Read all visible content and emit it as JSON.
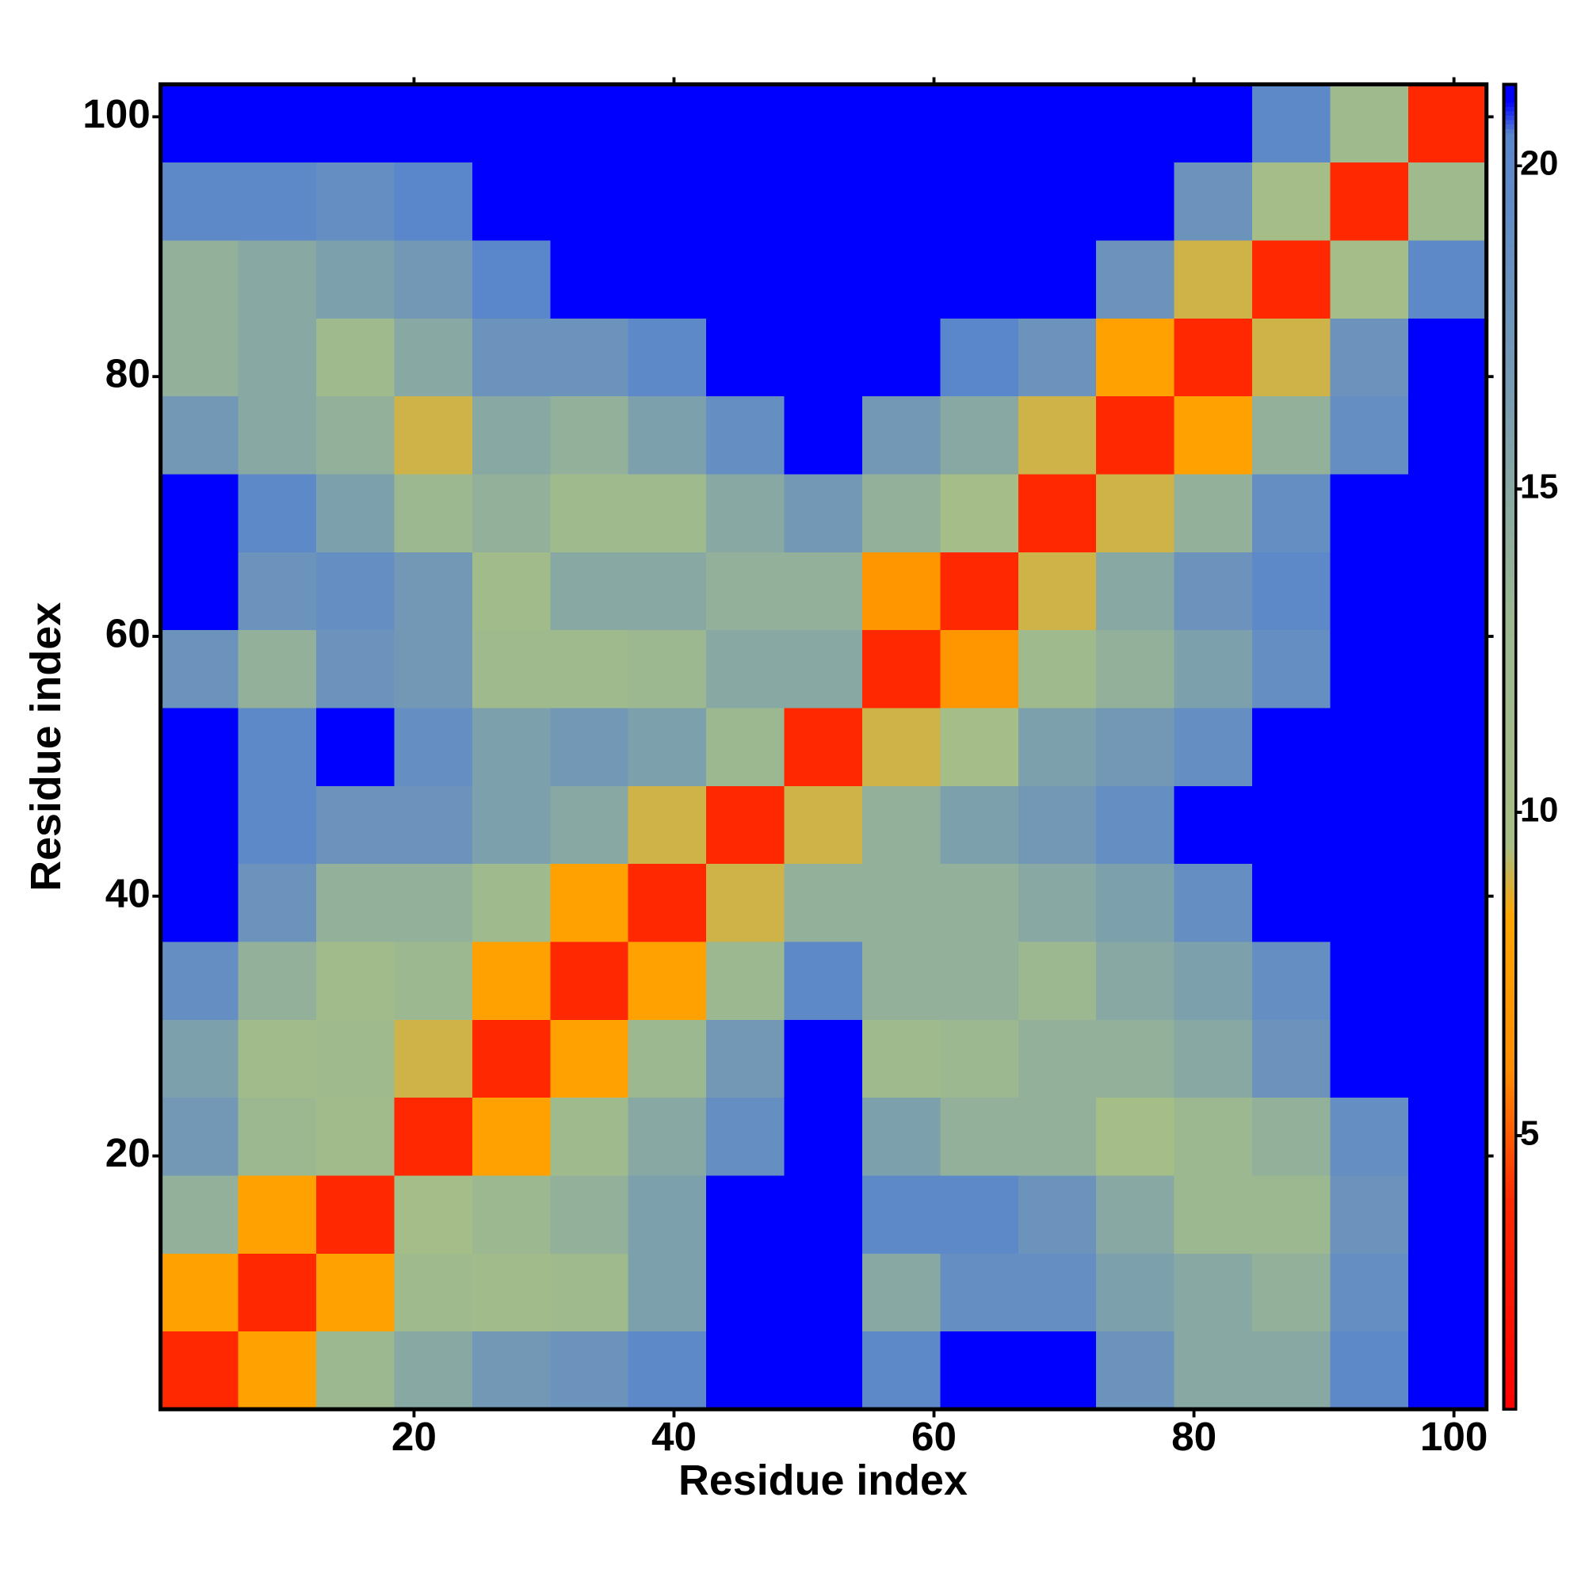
{
  "chart_data": {
    "type": "heatmap",
    "x_label": "Residue index",
    "y_label": "Residue index",
    "x_bins": [
      0.5,
      6.5,
      12.5,
      18.5,
      24.5,
      30.5,
      36.5,
      42.5,
      48.5,
      54.5,
      60.5,
      66.5,
      72.5,
      78.5,
      84.5,
      90.5,
      96.5,
      102.5
    ],
    "y_bins": [
      0.5,
      6.5,
      12.5,
      18.5,
      24.5,
      30.5,
      36.5,
      42.5,
      48.5,
      54.5,
      60.5,
      66.5,
      72.5,
      78.5,
      84.5,
      90.5,
      96.5,
      102.5
    ],
    "xlim": [
      0.5,
      102.5
    ],
    "ylim": [
      0.5,
      102.5
    ],
    "xticks": [
      20,
      40,
      60,
      80,
      100
    ],
    "yticks": [
      20,
      40,
      60,
      80,
      100
    ],
    "zlim": [
      0.77,
      21.26
    ],
    "zticks": [
      5,
      10,
      15,
      20
    ],
    "colorscale": [
      [
        0.77,
        "#ff0000"
      ],
      [
        4,
        "#ff2800"
      ],
      [
        6,
        "#ff8c00"
      ],
      [
        8.4,
        "#ffa500"
      ],
      [
        9.5,
        "#a6be86"
      ],
      [
        13,
        "#9cb890"
      ],
      [
        17,
        "#7398b6"
      ],
      [
        20.5,
        "#5a86cc"
      ],
      [
        21.0,
        "#0000ff"
      ],
      [
        21.26,
        "#0000ff"
      ]
    ],
    "z": [
      [
        4,
        8,
        13,
        15,
        17,
        18,
        20,
        21.2,
        21.2,
        20,
        21.2,
        21.2,
        18,
        15,
        15,
        20,
        21.2
      ],
      [
        8,
        4,
        8,
        12,
        11,
        12,
        16,
        21.2,
        21.2,
        15,
        19,
        19,
        16,
        15,
        14,
        19,
        21.2
      ],
      [
        14,
        8,
        4,
        10,
        13,
        14,
        16,
        21.2,
        21.2,
        20,
        20,
        18,
        15,
        13,
        13,
        18,
        21.2
      ],
      [
        17,
        13,
        11,
        4,
        8,
        12,
        15,
        19,
        21.2,
        16,
        14,
        14,
        10,
        13,
        14,
        19,
        21.2
      ],
      [
        16,
        11,
        12,
        9,
        4,
        8,
        13,
        17,
        21,
        12,
        13,
        14,
        14,
        15,
        18,
        21.2,
        21.2
      ],
      [
        19,
        14,
        11,
        13,
        8,
        4,
        8,
        13,
        20,
        14,
        14,
        13,
        15,
        16,
        19,
        21.2,
        21.2
      ],
      [
        21.2,
        18,
        14,
        14,
        12,
        8,
        4,
        9,
        14,
        14,
        14,
        15,
        16,
        19,
        21.2,
        21.2,
        21.2
      ],
      [
        21.2,
        20,
        18,
        18,
        16,
        15,
        9,
        4,
        9,
        14,
        16,
        17,
        19,
        21.2,
        21.2,
        21.2,
        21.2
      ],
      [
        21.2,
        20,
        21,
        19,
        16,
        17,
        16,
        13,
        4,
        9,
        10,
        16,
        17,
        19,
        21.2,
        21.2,
        21.2
      ],
      [
        18,
        14,
        18,
        17,
        12,
        12,
        13,
        15,
        15,
        4,
        7,
        12,
        14,
        16,
        19,
        21.2,
        21.2
      ],
      [
        21.2,
        18,
        19,
        17,
        11,
        15,
        15,
        14,
        14,
        7,
        4,
        9,
        15,
        18,
        20,
        21.2,
        21.2
      ],
      [
        21.2,
        20,
        16,
        13,
        14,
        12,
        12,
        15,
        17,
        14,
        10,
        4,
        9,
        14,
        19,
        21.2,
        21.2
      ],
      [
        17,
        15,
        14,
        9,
        15,
        14,
        16,
        19,
        21,
        17,
        15,
        9,
        4,
        8,
        14,
        19,
        21.2
      ],
      [
        14,
        15,
        12,
        15,
        18,
        18,
        20,
        21.2,
        21.2,
        21.2,
        20.5,
        18,
        8,
        4,
        9,
        18,
        21.2
      ],
      [
        14,
        15,
        16,
        17,
        20.5,
        21.2,
        21.2,
        21.2,
        21.2,
        21.2,
        21.2,
        21.2,
        18,
        9,
        4,
        10,
        20
      ],
      [
        20,
        20,
        19,
        20.5,
        21.2,
        21.2,
        21.2,
        21.2,
        21.2,
        21.2,
        21.2,
        21.2,
        21.2,
        18,
        10,
        4,
        12
      ],
      [
        21.2,
        21.2,
        21.2,
        21.2,
        21.2,
        21.2,
        21.2,
        21.2,
        21.2,
        21.2,
        21.2,
        21.2,
        21.2,
        21.2,
        20,
        12,
        4
      ]
    ]
  }
}
